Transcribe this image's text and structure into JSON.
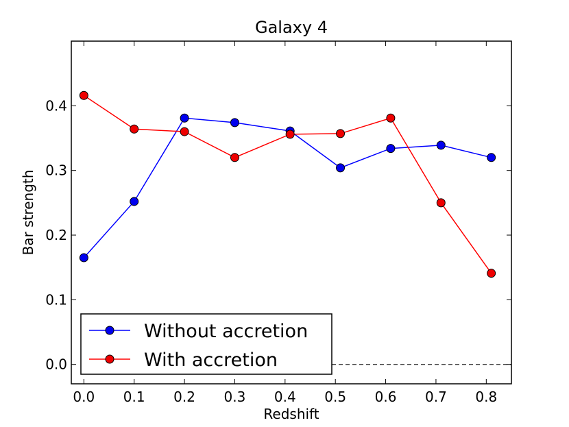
{
  "chart_data": {
    "type": "line",
    "title": "Galaxy 4",
    "xlabel": "Redshift",
    "ylabel": "Bar strength",
    "xlim": [
      -0.025,
      0.85
    ],
    "ylim": [
      -0.03,
      0.5
    ],
    "xticks": [
      0.0,
      0.1,
      0.2,
      0.3,
      0.4,
      0.5,
      0.6,
      0.7,
      0.8
    ],
    "xtick_labels": [
      "0.0",
      "0.1",
      "0.2",
      "0.3",
      "0.4",
      "0.5",
      "0.6",
      "0.7",
      "0.8"
    ],
    "yticks": [
      0.0,
      0.1,
      0.2,
      0.3,
      0.4
    ],
    "ytick_labels": [
      "0.0",
      "0.1",
      "0.2",
      "0.3",
      "0.4"
    ],
    "reference_line": {
      "y": 0.0,
      "style": "dashed"
    },
    "legend_position": "lower-left",
    "series": [
      {
        "name": "Without accretion",
        "color": "#0000ff",
        "marker_color": "#0000ee",
        "x": [
          0.0,
          0.1,
          0.2,
          0.3,
          0.41,
          0.51,
          0.61,
          0.71,
          0.81
        ],
        "values": [
          0.165,
          0.252,
          0.381,
          0.374,
          0.361,
          0.304,
          0.334,
          0.339,
          0.32
        ]
      },
      {
        "name": "With accretion",
        "color": "#ff0000",
        "marker_color": "#ee0000",
        "x": [
          0.0,
          0.1,
          0.2,
          0.3,
          0.41,
          0.51,
          0.61,
          0.71,
          0.81
        ],
        "values": [
          0.416,
          0.364,
          0.36,
          0.32,
          0.356,
          0.357,
          0.381,
          0.25,
          0.141
        ]
      }
    ]
  }
}
